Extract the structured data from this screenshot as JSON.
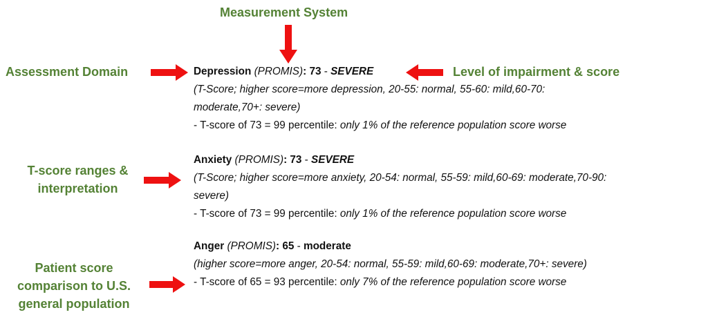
{
  "labels": {
    "measurement_system": "Measurement System",
    "assessment_domain": "Assessment Domain",
    "level": "Level of impairment & score",
    "ranges": [
      "T-score ranges &",
      "interpretation"
    ],
    "comparison": [
      "Patient score",
      "comparison to U.S.",
      "general population"
    ]
  },
  "colors": {
    "label": "#548235",
    "arrow": "#ee1111"
  },
  "domains": [
    {
      "name": "Depression",
      "system": "(PROMIS)",
      "score": "73",
      "sep": " - ",
      "level": "SEVERE",
      "ranges": [
        "(T-Score; higher score=more depression, 20-55: normal, 55-60: mild,60-70:",
        "moderate,70+: severe)"
      ],
      "pct_prefix": "- T-score of 73 = 99 percentile: ",
      "pct_note": "only 1% of the reference population score worse"
    },
    {
      "name": "Anxiety",
      "system": "(PROMIS)",
      "score": "73",
      "sep": " - ",
      "level": "SEVERE",
      "ranges": [
        "(T-Score; higher score=more anxiety, 20-54: normal, 55-59: mild,60-69: moderate,70-90:",
        "severe)"
      ],
      "pct_prefix": "- T-score of 73 = 99 percentile: ",
      "pct_note": "only 1% of the reference population score worse"
    },
    {
      "name": "Anger",
      "system": "(PROMIS)",
      "score": "65",
      "sep": " - ",
      "level": "moderate",
      "ranges": [
        "(higher score=more anger, 20-54: normal, 55-59: mild,60-69: moderate,70+: severe)"
      ],
      "pct_prefix": "- T-score of 65 = 93 percentile: ",
      "pct_note": "only 7% of the reference population score worse"
    }
  ]
}
